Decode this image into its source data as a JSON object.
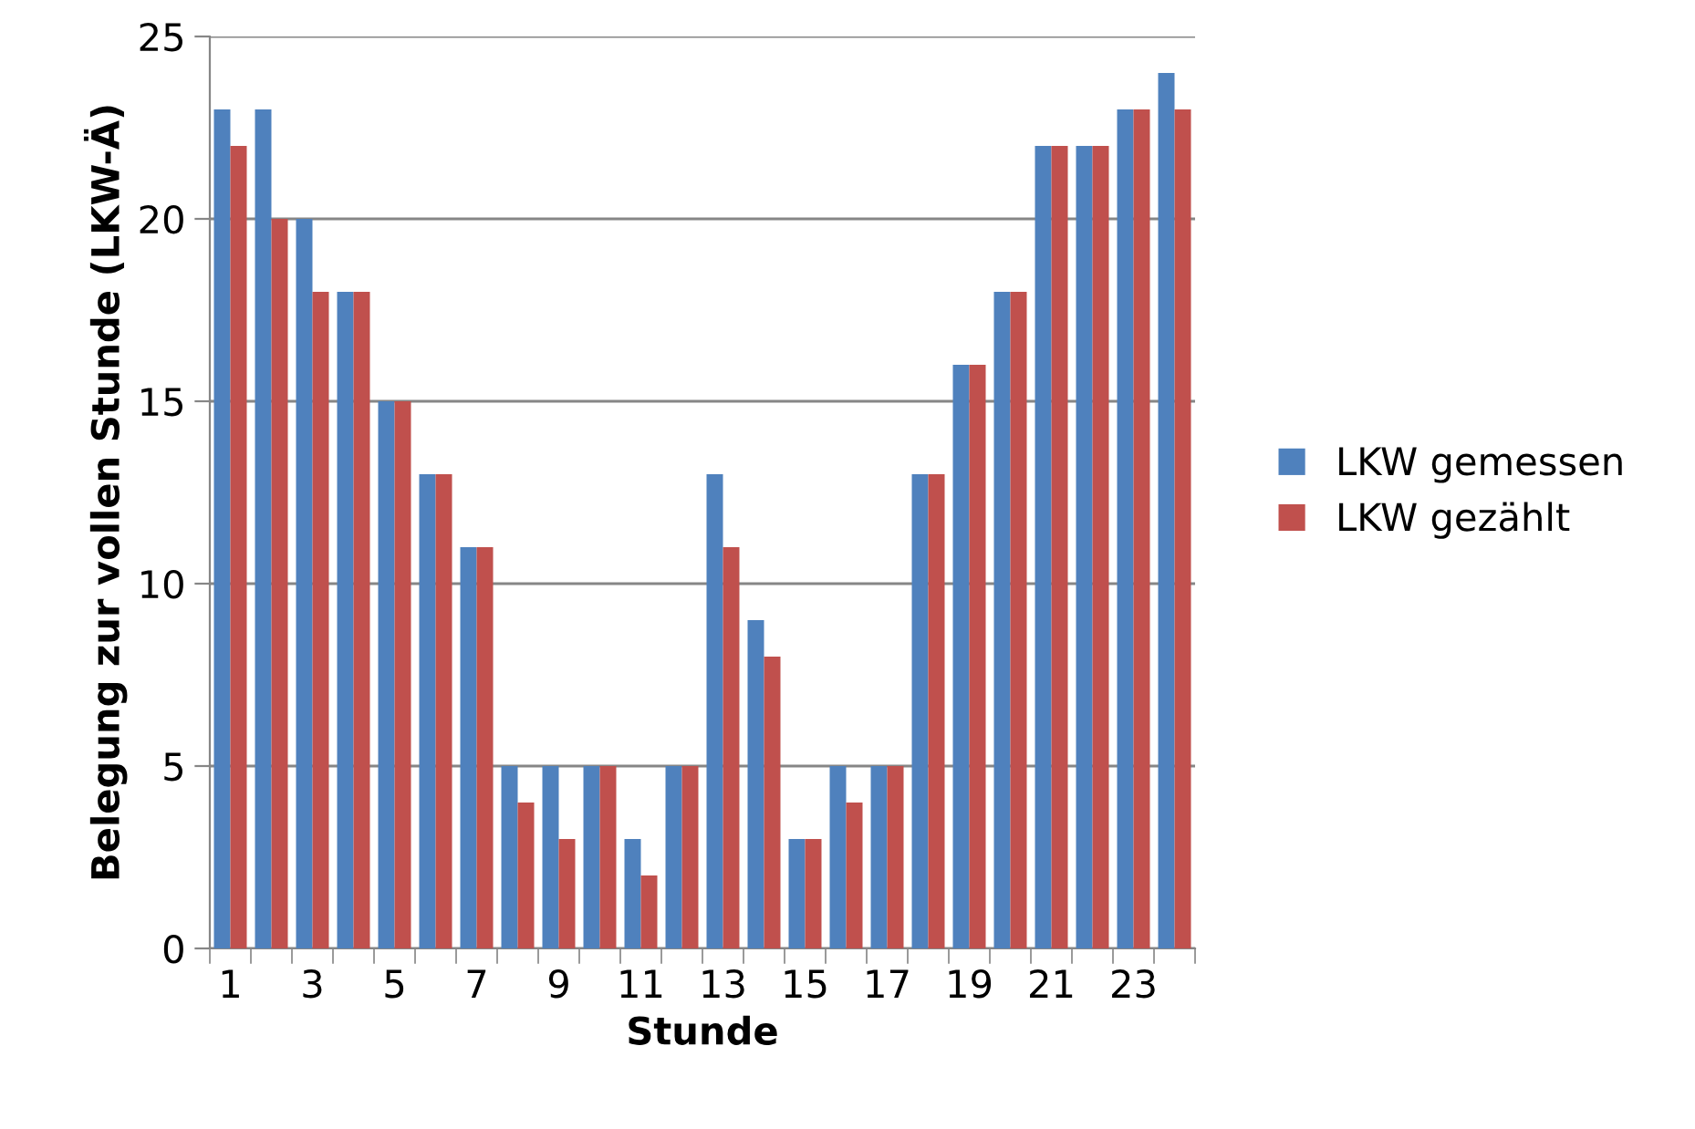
{
  "chart_data": {
    "type": "bar",
    "xlabel": "Stunde",
    "ylabel": "Belegung zur vollen Stunde (LKW-Ä)",
    "categories": [
      "1",
      null,
      "3",
      null,
      "5",
      null,
      "7",
      null,
      "9",
      null,
      "11",
      null,
      "13",
      null,
      "15",
      null,
      "17",
      null,
      "19",
      null,
      "21",
      null,
      "23",
      null
    ],
    "series": [
      {
        "name": "LKW gemessen",
        "color": "#4f81bd",
        "values": [
          23,
          23,
          20,
          18,
          15,
          13,
          11,
          5,
          5,
          5,
          3,
          5,
          13,
          9,
          3,
          5,
          5,
          13,
          16,
          18,
          22,
          22,
          23,
          24
        ]
      },
      {
        "name": "LKW gezählt",
        "color": "#c0504d",
        "values": [
          22,
          20,
          18,
          18,
          15,
          13,
          11,
          4,
          3,
          5,
          2,
          5,
          11,
          8,
          3,
          4,
          5,
          13,
          16,
          18,
          22,
          22,
          23,
          23
        ]
      }
    ],
    "ylim": [
      0,
      25
    ],
    "yticks": [
      0,
      5,
      10,
      15,
      20,
      25
    ],
    "grid": "y",
    "legend": "right"
  }
}
